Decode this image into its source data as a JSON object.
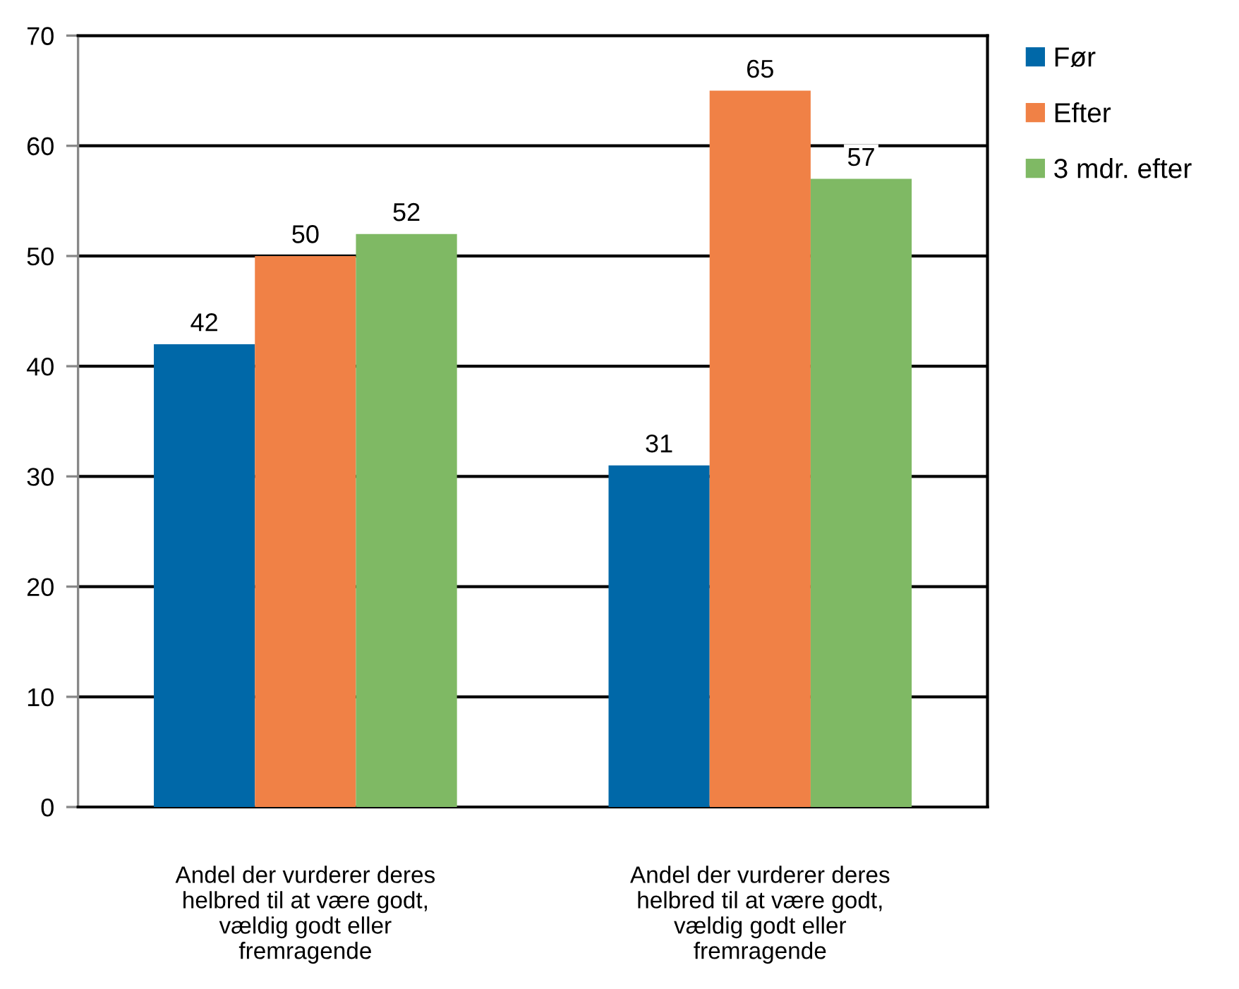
{
  "chart_data": {
    "type": "bar",
    "categories": [
      "Andel der vurderer deres\nhelbred til at være godt,\nvældig godt eller\nfremragende",
      "Andel der vurderer deres\nhelbred til at være godt,\nvældig godt eller\nfremragende"
    ],
    "series": [
      {
        "name": "Før",
        "color": "#0068a8",
        "values": [
          42,
          31
        ]
      },
      {
        "name": "Efter",
        "color": "#f08146",
        "values": [
          50,
          65
        ]
      },
      {
        "name": "3 mdr. efter",
        "color": "#7fb964",
        "values": [
          52,
          57
        ]
      }
    ],
    "ylim": [
      0,
      70
    ],
    "yticks": [
      0,
      10,
      20,
      30,
      40,
      50,
      60,
      70
    ],
    "grid": "y",
    "legend": "top right",
    "data_labels": true
  }
}
